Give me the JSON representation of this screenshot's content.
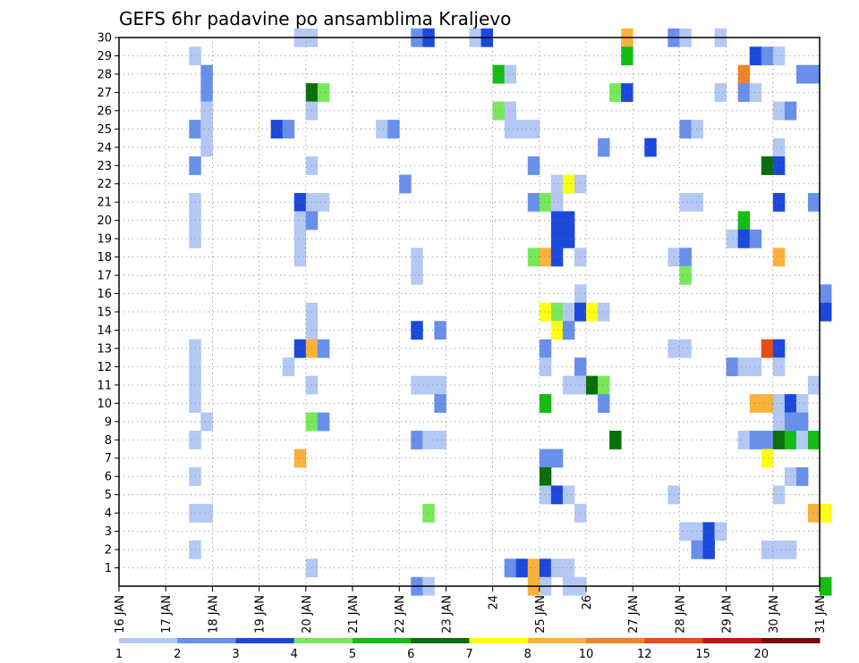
{
  "chart_data": {
    "type": "heatmap",
    "title": "GEFS 6hr padavine po ansamblima Kraljevo",
    "xlabel": "",
    "ylabel": "",
    "x_range_days": [
      16,
      31
    ],
    "y_range": [
      0,
      30
    ],
    "y_ticks": [
      1,
      2,
      3,
      4,
      5,
      6,
      7,
      8,
      9,
      10,
      11,
      12,
      13,
      14,
      15,
      16,
      17,
      18,
      19,
      20,
      21,
      22,
      23,
      24,
      25,
      26,
      27,
      28,
      29,
      30
    ],
    "x_ticks": [
      {
        "day": 16,
        "label": "16 JAN"
      },
      {
        "day": 17,
        "label": "17 JAN"
      },
      {
        "day": 18,
        "label": "18 JAN"
      },
      {
        "day": 19,
        "label": "19 JAN"
      },
      {
        "day": 20,
        "label": "20 JAN"
      },
      {
        "day": 21,
        "label": "21 JAN"
      },
      {
        "day": 22,
        "label": "22 JAN"
      },
      {
        "day": 23,
        "label": "23 JAN"
      },
      {
        "day": 24,
        "label": "24"
      },
      {
        "day": 25,
        "label": "25 JAN"
      },
      {
        "day": 26,
        "label": "26"
      },
      {
        "day": 27,
        "label": "27 JAN"
      },
      {
        "day": 28,
        "label": "28 JAN"
      },
      {
        "day": 29,
        "label": "29 JAN"
      },
      {
        "day": 30,
        "label": "30 JAN"
      },
      {
        "day": 31,
        "label": "31 JAN"
      }
    ],
    "grid": true,
    "legend_placement": "bottom",
    "color_levels": [
      {
        "label": "1",
        "color": "#b4c8f4"
      },
      {
        "label": "2",
        "color": "#6890ea"
      },
      {
        "label": "3",
        "color": "#1c48dc"
      },
      {
        "label": "4",
        "color": "#78e85a"
      },
      {
        "label": "5",
        "color": "#14bc14"
      },
      {
        "label": "6",
        "color": "#0a6e0a"
      },
      {
        "label": "7",
        "color": "#ffff14"
      },
      {
        "label": "8",
        "color": "#fbb13c"
      },
      {
        "label": "10",
        "color": "#f08228"
      },
      {
        "label": "12",
        "color": "#e64c14"
      },
      {
        "label": "15",
        "color": "#c41414"
      },
      {
        "label": "20",
        "color": "#780a0a"
      }
    ],
    "cells": [
      [
        0,
        30,
        15
      ],
      [
        0,
        30,
        16
      ],
      [
        1,
        30,
        25
      ],
      [
        2,
        30,
        26
      ],
      [
        0,
        30,
        30
      ],
      [
        2,
        30,
        31
      ],
      [
        7,
        30,
        43
      ],
      [
        1,
        30,
        47
      ],
      [
        0,
        30,
        48
      ],
      [
        0,
        30,
        51
      ],
      [
        0,
        29,
        6
      ],
      [
        4,
        29,
        43
      ],
      [
        2,
        29,
        54
      ],
      [
        1,
        29,
        55
      ],
      [
        0,
        29,
        56
      ],
      [
        1,
        28,
        7
      ],
      [
        4,
        28,
        32
      ],
      [
        0,
        28,
        33
      ],
      [
        8,
        28,
        53
      ],
      [
        1,
        28,
        58
      ],
      [
        1,
        28,
        59
      ],
      [
        1,
        27,
        7
      ],
      [
        5,
        27,
        16
      ],
      [
        3,
        27,
        17
      ],
      [
        3,
        27,
        42
      ],
      [
        2,
        27,
        43
      ],
      [
        0,
        27,
        51
      ],
      [
        1,
        27,
        53
      ],
      [
        0,
        27,
        54
      ],
      [
        0,
        26,
        7
      ],
      [
        0,
        26,
        16
      ],
      [
        3,
        26,
        32
      ],
      [
        0,
        26,
        33
      ],
      [
        0,
        26,
        56
      ],
      [
        1,
        26,
        57
      ],
      [
        1,
        25,
        6
      ],
      [
        0,
        25,
        7
      ],
      [
        2,
        25,
        13
      ],
      [
        1,
        25,
        14
      ],
      [
        0,
        25,
        22
      ],
      [
        1,
        25,
        23
      ],
      [
        0,
        25,
        33
      ],
      [
        0,
        25,
        34
      ],
      [
        0,
        25,
        35
      ],
      [
        1,
        25,
        48
      ],
      [
        0,
        25,
        49
      ],
      [
        0,
        24,
        7
      ],
      [
        1,
        24,
        41
      ],
      [
        2,
        24,
        45
      ],
      [
        0,
        24,
        56
      ],
      [
        1,
        23,
        6
      ],
      [
        0,
        23,
        16
      ],
      [
        1,
        23,
        35
      ],
      [
        5,
        23,
        55
      ],
      [
        2,
        23,
        56
      ],
      [
        1,
        22,
        24
      ],
      [
        0,
        22,
        37
      ],
      [
        6,
        22,
        38
      ],
      [
        0,
        22,
        39
      ],
      [
        0,
        21,
        6
      ],
      [
        2,
        21,
        15
      ],
      [
        0,
        21,
        16
      ],
      [
        0,
        21,
        17
      ],
      [
        1,
        21,
        35
      ],
      [
        3,
        21,
        36
      ],
      [
        0,
        21,
        37
      ],
      [
        0,
        21,
        48
      ],
      [
        0,
        21,
        49
      ],
      [
        2,
        21,
        56
      ],
      [
        1,
        21,
        59
      ],
      [
        0,
        20,
        6
      ],
      [
        0,
        20,
        15
      ],
      [
        1,
        20,
        16
      ],
      [
        2,
        20,
        37
      ],
      [
        2,
        20,
        38
      ],
      [
        4,
        20,
        53
      ],
      [
        0,
        19,
        6
      ],
      [
        0,
        19,
        15
      ],
      [
        2,
        19,
        37
      ],
      [
        2,
        19,
        38
      ],
      [
        0,
        19,
        52
      ],
      [
        2,
        19,
        53
      ],
      [
        1,
        19,
        54
      ],
      [
        0,
        18,
        15
      ],
      [
        0,
        18,
        25
      ],
      [
        0,
        18,
        39
      ],
      [
        0,
        18,
        48
      ],
      [
        3,
        18,
        35
      ],
      [
        7,
        18,
        36
      ],
      [
        2,
        18,
        37
      ],
      [
        0,
        18,
        47
      ],
      [
        1,
        18,
        48
      ],
      [
        7,
        18,
        56
      ],
      [
        0,
        17,
        25
      ],
      [
        3,
        17,
        48
      ],
      [
        0,
        16,
        39
      ],
      [
        1,
        16,
        60
      ],
      [
        0,
        15,
        16
      ],
      [
        6,
        15,
        36
      ],
      [
        3,
        15,
        37
      ],
      [
        0,
        15,
        38
      ],
      [
        2,
        15,
        39
      ],
      [
        6,
        15,
        40
      ],
      [
        0,
        15,
        41
      ],
      [
        2,
        15,
        60
      ],
      [
        0,
        14,
        16
      ],
      [
        2,
        14,
        25
      ],
      [
        1,
        14,
        27
      ],
      [
        6,
        14,
        37
      ],
      [
        1,
        14,
        38
      ],
      [
        0,
        13,
        6
      ],
      [
        2,
        13,
        15
      ],
      [
        7,
        13,
        16
      ],
      [
        1,
        13,
        17
      ],
      [
        1,
        13,
        36
      ],
      [
        0,
        13,
        47
      ],
      [
        0,
        13,
        48
      ],
      [
        9,
        13,
        55
      ],
      [
        2,
        13,
        56
      ],
      [
        0,
        12,
        6
      ],
      [
        0,
        12,
        14
      ],
      [
        0,
        12,
        36
      ],
      [
        1,
        12,
        39
      ],
      [
        1,
        12,
        52
      ],
      [
        0,
        12,
        53
      ],
      [
        0,
        12,
        54
      ],
      [
        0,
        12,
        56
      ],
      [
        0,
        11,
        6
      ],
      [
        0,
        11,
        16
      ],
      [
        0,
        11,
        25
      ],
      [
        0,
        11,
        26
      ],
      [
        0,
        11,
        27
      ],
      [
        0,
        11,
        38
      ],
      [
        0,
        11,
        39
      ],
      [
        5,
        11,
        40
      ],
      [
        3,
        11,
        41
      ],
      [
        0,
        11,
        59
      ],
      [
        0,
        10,
        6
      ],
      [
        1,
        10,
        27
      ],
      [
        4,
        10,
        36
      ],
      [
        1,
        10,
        41
      ],
      [
        7,
        10,
        54
      ],
      [
        7,
        10,
        55
      ],
      [
        0,
        10,
        56
      ],
      [
        2,
        10,
        57
      ],
      [
        0,
        10,
        58
      ],
      [
        0,
        9,
        7
      ],
      [
        3,
        9,
        16
      ],
      [
        1,
        9,
        17
      ],
      [
        0,
        9,
        56
      ],
      [
        1,
        9,
        57
      ],
      [
        1,
        9,
        58
      ],
      [
        0,
        8,
        6
      ],
      [
        1,
        8,
        25
      ],
      [
        0,
        8,
        26
      ],
      [
        0,
        8,
        27
      ],
      [
        5,
        8,
        42
      ],
      [
        0,
        8,
        53
      ],
      [
        1,
        8,
        54
      ],
      [
        1,
        8,
        55
      ],
      [
        5,
        8,
        56
      ],
      [
        4,
        8,
        57
      ],
      [
        0,
        8,
        58
      ],
      [
        4,
        8,
        59
      ],
      [
        7,
        7,
        15
      ],
      [
        1,
        7,
        36
      ],
      [
        1,
        7,
        37
      ],
      [
        6,
        7,
        55
      ],
      [
        0,
        6,
        6
      ],
      [
        5,
        6,
        36
      ],
      [
        0,
        6,
        57
      ],
      [
        1,
        6,
        58
      ],
      [
        0,
        5,
        36
      ],
      [
        2,
        5,
        37
      ],
      [
        0,
        5,
        38
      ],
      [
        0,
        5,
        47
      ],
      [
        0,
        5,
        56
      ],
      [
        0,
        4,
        6
      ],
      [
        0,
        4,
        7
      ],
      [
        3,
        4,
        26
      ],
      [
        0,
        4,
        39
      ],
      [
        7,
        4,
        59
      ],
      [
        6,
        4,
        60
      ],
      [
        0,
        3,
        48
      ],
      [
        0,
        3,
        49
      ],
      [
        2,
        3,
        50
      ],
      [
        0,
        3,
        51
      ],
      [
        0,
        2,
        6
      ],
      [
        1,
        2,
        49
      ],
      [
        2,
        2,
        50
      ],
      [
        0,
        2,
        55
      ],
      [
        0,
        2,
        56
      ],
      [
        0,
        2,
        57
      ],
      [
        0,
        1,
        16
      ],
      [
        1,
        1,
        33
      ],
      [
        2,
        1,
        34
      ],
      [
        7,
        1,
        35
      ],
      [
        2,
        1,
        36
      ],
      [
        0,
        1,
        37
      ],
      [
        0,
        1,
        38
      ],
      [
        1,
        0,
        25
      ],
      [
        0,
        0,
        26
      ],
      [
        7,
        0,
        35
      ],
      [
        0,
        0,
        36
      ],
      [
        0,
        0,
        38
      ],
      [
        0,
        0,
        39
      ],
      [
        4,
        0,
        60
      ]
    ]
  }
}
